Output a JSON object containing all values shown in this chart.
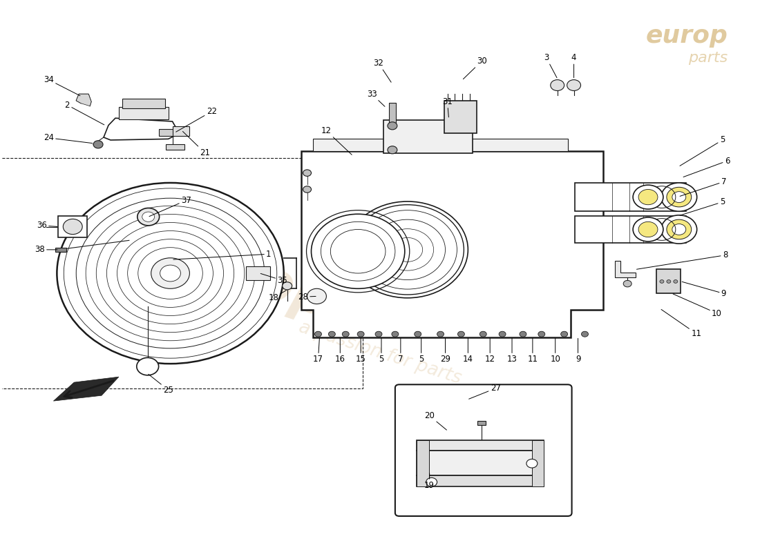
{
  "bg_color": "#ffffff",
  "line_color": "#1a1a1a",
  "fig_width": 11.0,
  "fig_height": 8.0,
  "dpi": 100,
  "watermark1": "europ",
  "watermark2": "a passion for parts",
  "wm_color": "#d4b483",
  "logo_color": "#c8a050"
}
